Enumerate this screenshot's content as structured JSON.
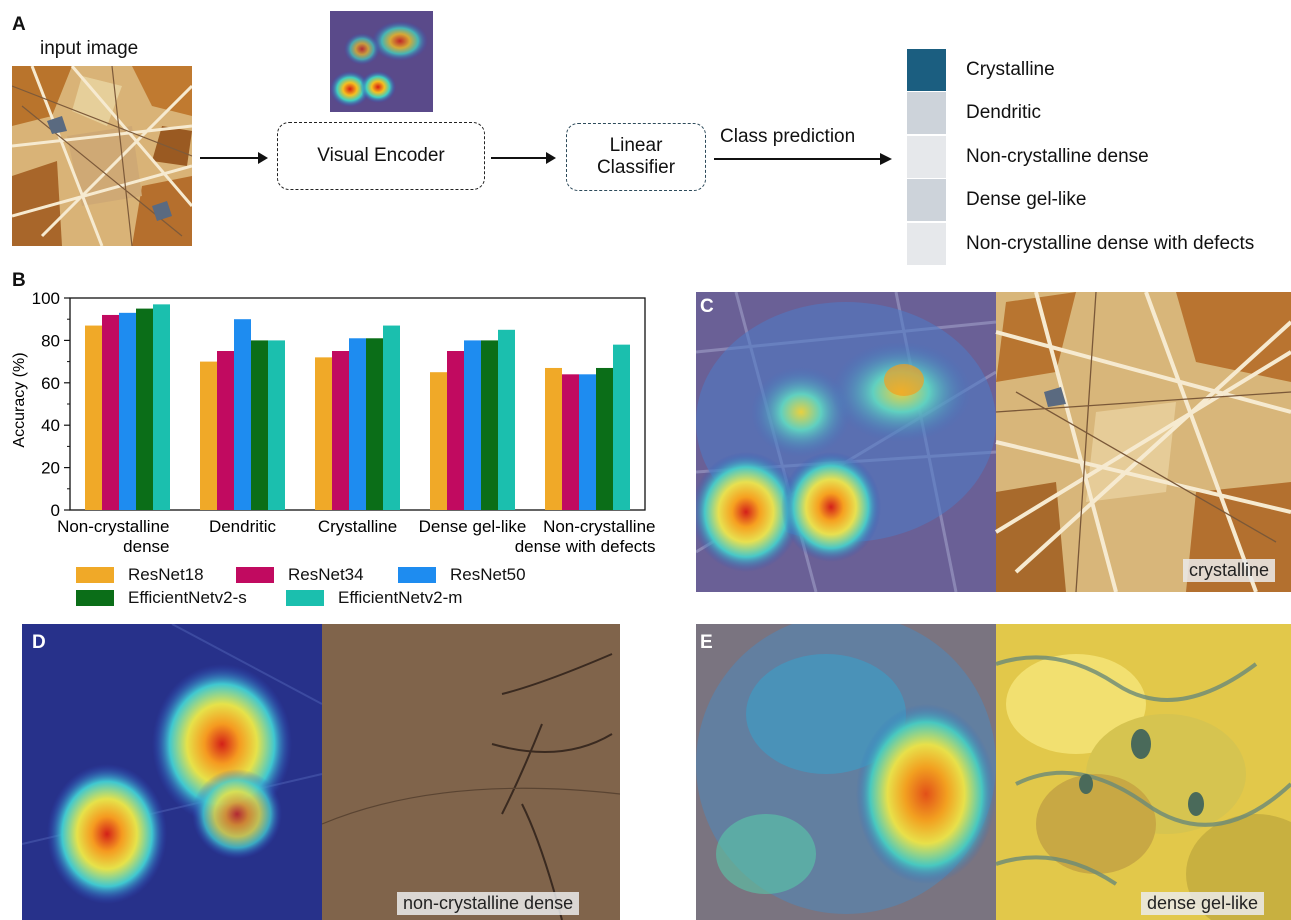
{
  "panels": {
    "a": "A",
    "b": "B",
    "c": "C",
    "d": "D",
    "e": "E"
  },
  "pipeline": {
    "input_label": "input image",
    "encoder_label": "Visual Encoder",
    "classifier_label": "Linear\nClassifier",
    "prediction_label": "Class prediction"
  },
  "classes": [
    {
      "label": "Crystalline",
      "color": "#1b5e80"
    },
    {
      "label": "Dendritic",
      "color": "#cdd3da"
    },
    {
      "label": "Non-crystalline dense",
      "color": "#e6e8eb"
    },
    {
      "label": "Dense gel-like",
      "color": "#cdd3da"
    },
    {
      "label": "Non-crystalline dense with defects",
      "color": "#e6e8eb"
    }
  ],
  "images": {
    "c_tag": "crystalline",
    "d_tag": "non-crystalline dense",
    "e_tag": "dense gel-like"
  },
  "chart_data": {
    "type": "bar",
    "ylabel": "Accuracy (%)",
    "xlabel": "",
    "ylim": [
      0,
      100
    ],
    "yticks": [
      0,
      20,
      40,
      60,
      80,
      100
    ],
    "categories": [
      "Non-crystalline\ndense",
      "Dendritic",
      "Crystalline",
      "Dense gel-like",
      "Non-crystalline\ndense with defects"
    ],
    "series": [
      {
        "name": "ResNet18",
        "color": "#f0a928",
        "values": [
          87,
          70,
          72,
          65,
          67
        ]
      },
      {
        "name": "ResNet34",
        "color": "#c10a60",
        "values": [
          92,
          75,
          75,
          75,
          64
        ]
      },
      {
        "name": "ResNet50",
        "color": "#1e8cf0",
        "values": [
          93,
          90,
          81,
          80,
          64
        ]
      },
      {
        "name": "EfficientNetv2-s",
        "color": "#0b6e18",
        "values": [
          95,
          80,
          81,
          80,
          67
        ]
      },
      {
        "name": "EfficientNetv2-m",
        "color": "#1bbfae",
        "values": [
          97,
          80,
          87,
          85,
          78
        ]
      }
    ],
    "legend_position": "bottom"
  }
}
